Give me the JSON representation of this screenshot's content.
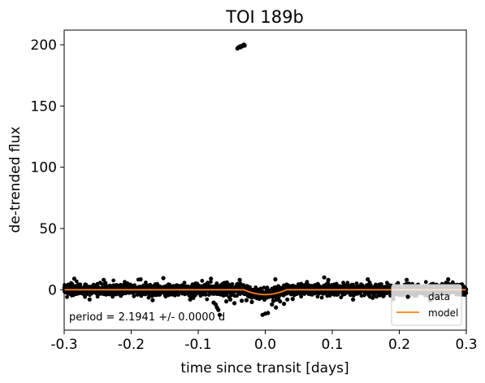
{
  "chart_data": {
    "type": "scatter",
    "title": "TOI 189b",
    "xlabel": "time since transit [days]",
    "ylabel": "de-trended flux",
    "xlim": [
      -0.3,
      0.3
    ],
    "ylim": [
      -33,
      212
    ],
    "xticks": [
      -0.3,
      -0.2,
      -0.1,
      0.0,
      0.1,
      0.2,
      0.3
    ],
    "xtick_labels": [
      "-0.3",
      "-0.2",
      "-0.1",
      "0.0",
      "0.1",
      "0.2",
      "0.3"
    ],
    "yticks": [
      0,
      50,
      100,
      150,
      200
    ],
    "ytick_labels": [
      "0",
      "50",
      "100",
      "150",
      "200"
    ],
    "grid": false,
    "legend_position": "lower-right",
    "annotation": "period = 2.1941 +/- 0.0000 d",
    "series": [
      {
        "name": "data",
        "kind": "scatter",
        "color": "#000000",
        "points": [
          [
            -0.0415,
            197.0
          ],
          [
            -0.0405,
            197.6
          ],
          [
            -0.0392,
            198.2
          ],
          [
            -0.038,
            198.6
          ],
          [
            -0.0368,
            198.0
          ],
          [
            -0.0357,
            199.0
          ],
          [
            -0.0345,
            198.8
          ],
          [
            -0.033,
            199.7
          ],
          [
            -0.0318,
            200.2
          ],
          [
            -0.0307,
            199.4
          ],
          [
            -0.077,
            -10.5
          ],
          [
            -0.074,
            -12.0
          ],
          [
            -0.072,
            -14.5
          ],
          [
            -0.07,
            -16.5
          ],
          [
            -0.068,
            -20.5
          ],
          [
            -0.058,
            -9.5
          ],
          [
            -0.052,
            -8.0
          ],
          [
            -0.046,
            -11.0
          ],
          [
            -0.035,
            -9.0
          ],
          [
            -0.028,
            -8.5
          ],
          [
            -0.02,
            -10.0
          ],
          [
            -0.004,
            -20.5
          ],
          [
            0.0,
            -19.5
          ],
          [
            0.004,
            -19.0
          ],
          [
            0.01,
            -12.0
          ],
          [
            0.016,
            -14.5
          ],
          [
            0.022,
            -9.5
          ],
          [
            0.028,
            -11.5
          ],
          [
            0.033,
            -8.0
          ],
          [
            0.041,
            -7.5
          ],
          [
            -0.285,
            9.0
          ],
          [
            -0.241,
            8.0
          ],
          [
            -0.186,
            8.5
          ],
          [
            -0.152,
            9.5
          ],
          [
            -0.081,
            9.0
          ],
          [
            -0.038,
            8.0
          ],
          [
            0.015,
            8.5
          ],
          [
            0.088,
            10.0
          ],
          [
            0.094,
            8.0
          ],
          [
            0.153,
            8.5
          ],
          [
            0.211,
            8.0
          ],
          [
            0.273,
            8.5
          ],
          [
            -0.262,
            -8.0
          ],
          [
            -0.168,
            -8.5
          ],
          [
            -0.112,
            -8.0
          ],
          [
            0.131,
            -8.0
          ],
          [
            0.191,
            -7.5
          ],
          [
            0.246,
            -8.5
          ]
        ]
      },
      {
        "name": "model",
        "kind": "line",
        "color": "#ff7f0e",
        "x": [
          -0.3,
          -0.032,
          -0.028,
          -0.024,
          -0.02,
          -0.016,
          -0.012,
          -0.008,
          -0.004,
          0.0,
          0.004,
          0.008,
          0.012,
          0.016,
          0.02,
          0.024,
          0.028,
          0.032,
          0.3
        ],
        "y": [
          0.0,
          0.0,
          -0.9,
          -1.7,
          -2.4,
          -3.0,
          -3.4,
          -3.7,
          -3.9,
          -4.0,
          -3.9,
          -3.7,
          -3.4,
          -3.0,
          -2.4,
          -1.7,
          -0.9,
          0.0,
          0.0
        ]
      }
    ]
  }
}
